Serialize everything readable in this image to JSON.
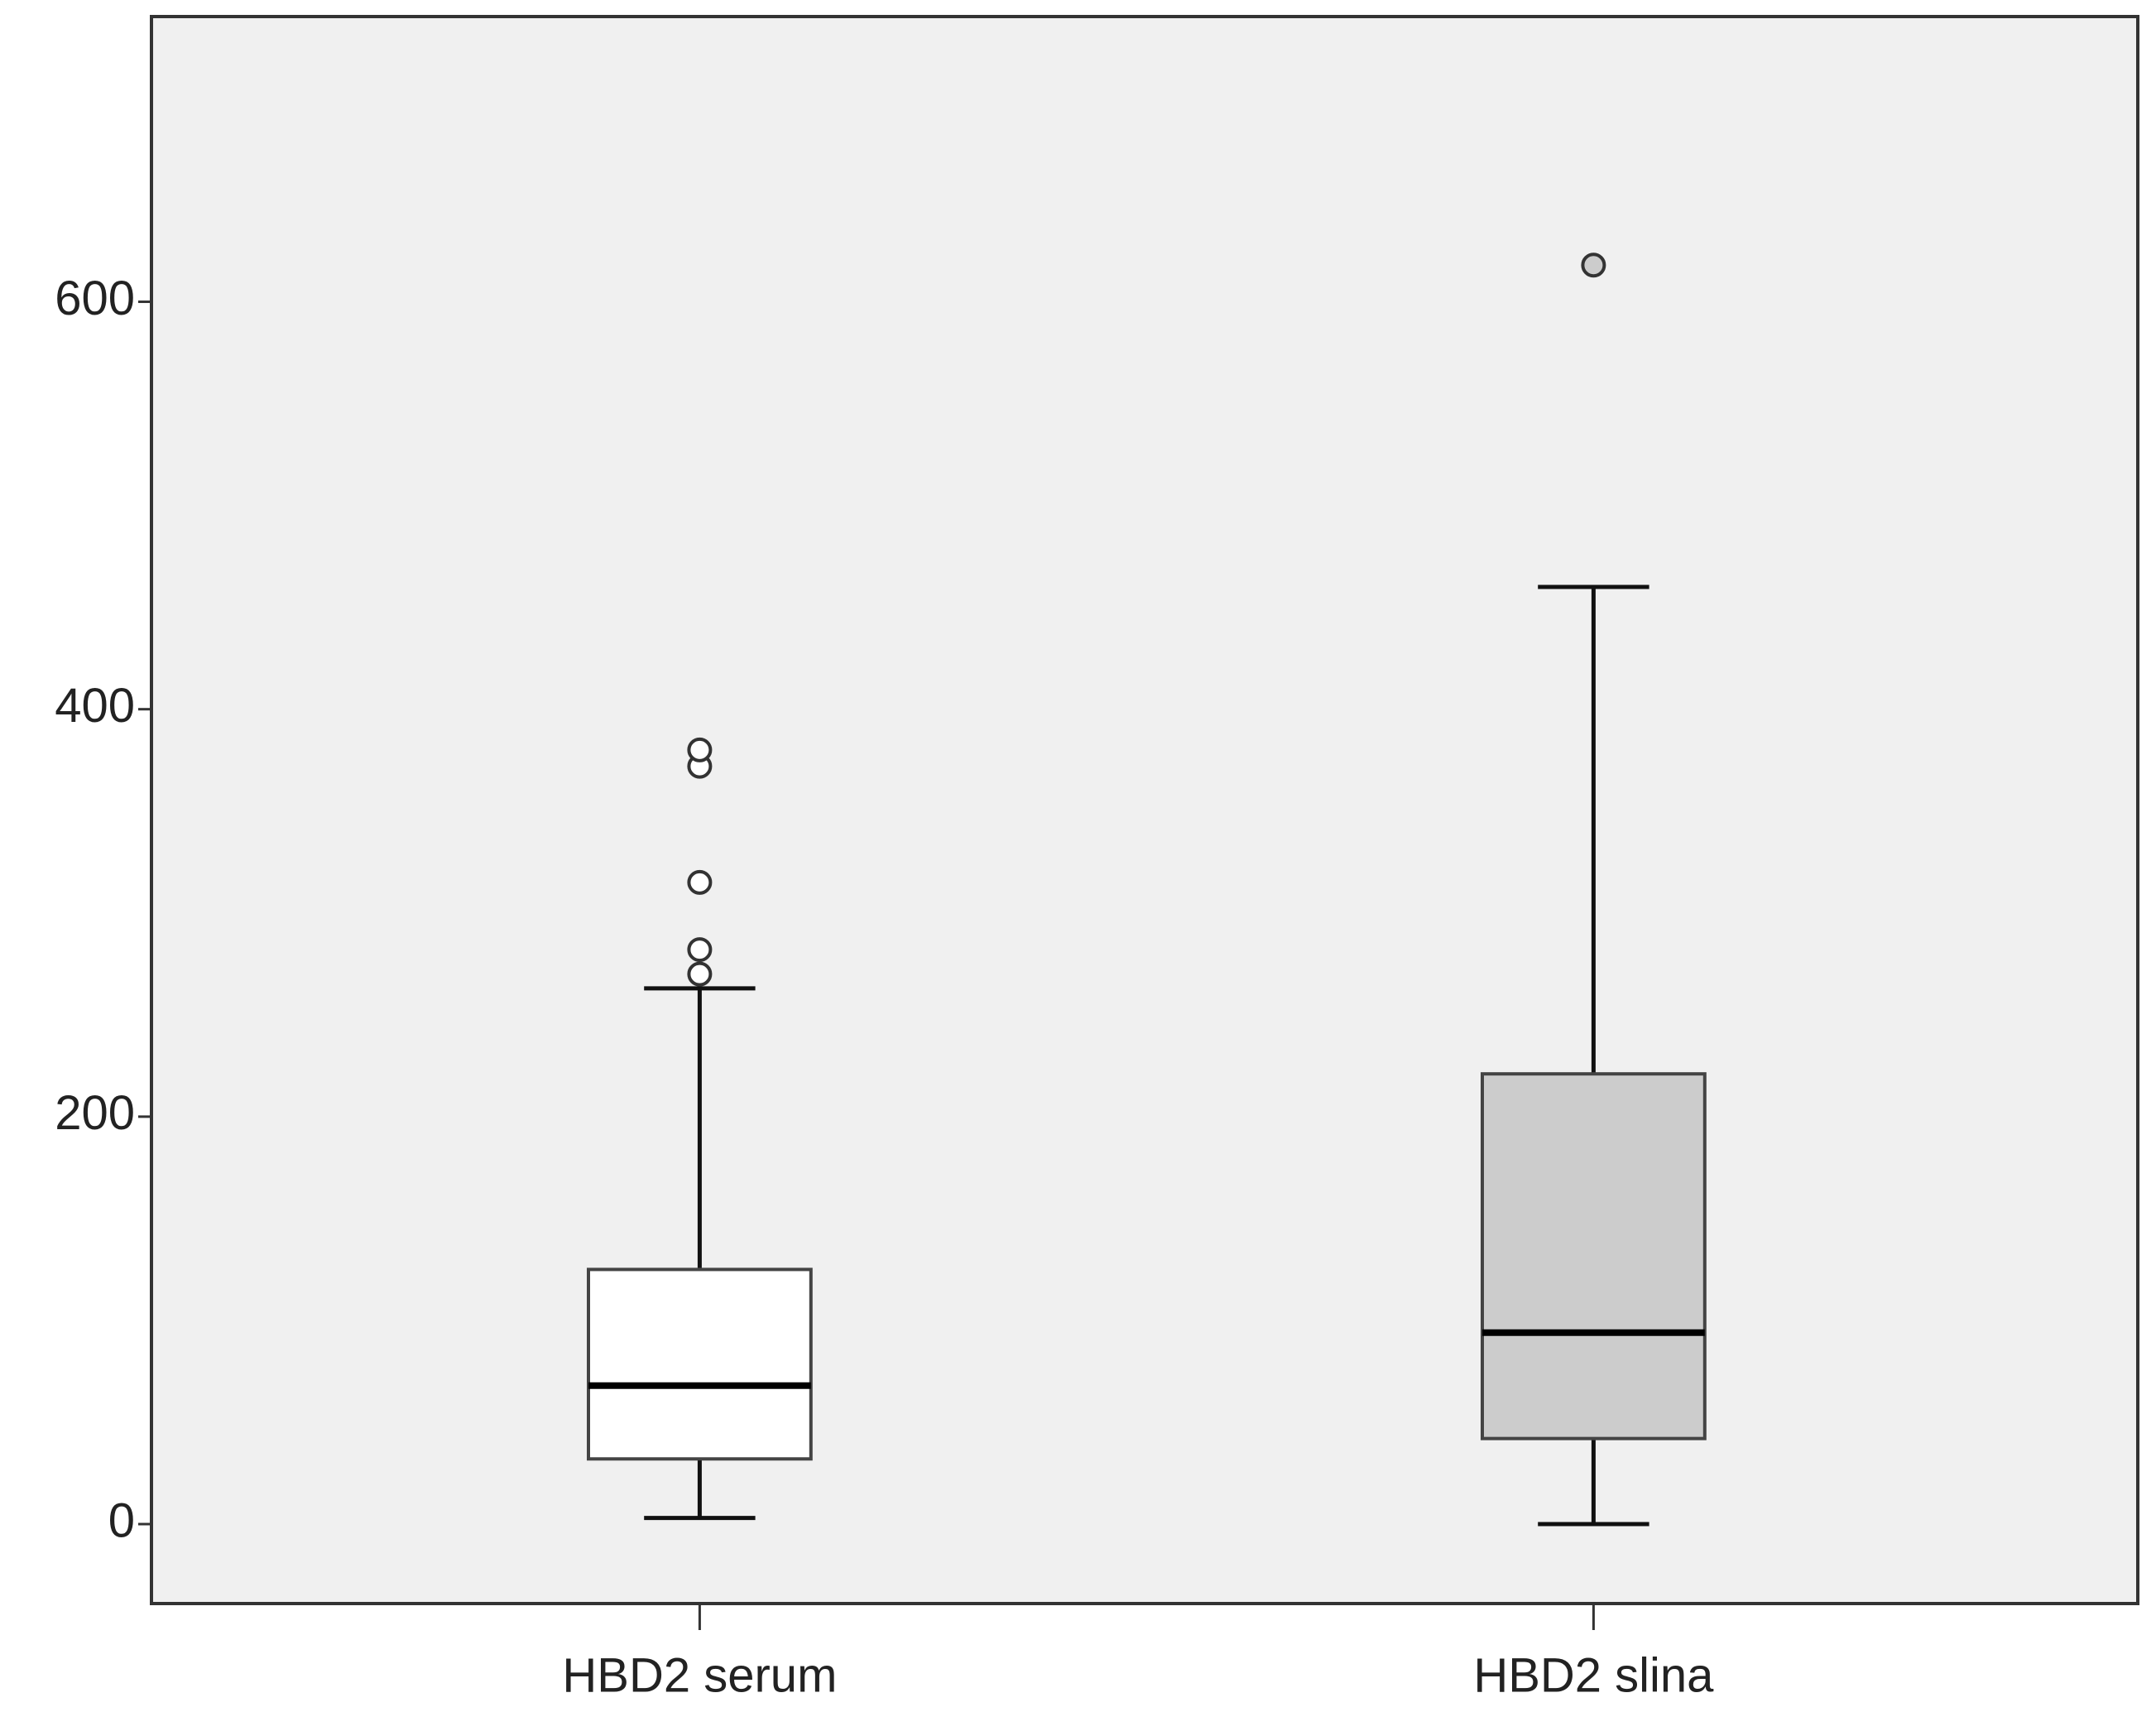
{
  "chart_data": {
    "type": "box",
    "categories": [
      "HBD2 serum",
      "HBD2 slina"
    ],
    "boxes": [
      {
        "min": 3,
        "q1": 32,
        "median": 68,
        "q3": 125,
        "max": 263,
        "outliers": [
          270,
          282,
          315,
          372,
          380
        ]
      },
      {
        "min": 0,
        "q1": 42,
        "median": 94,
        "q3": 221,
        "max": 460,
        "outliers": [
          618
        ]
      }
    ],
    "colors": [
      "#ffffff",
      "#cccccc"
    ],
    "ylim": [
      -39,
      740
    ],
    "yticks": [
      0,
      200,
      400,
      600
    ]
  }
}
